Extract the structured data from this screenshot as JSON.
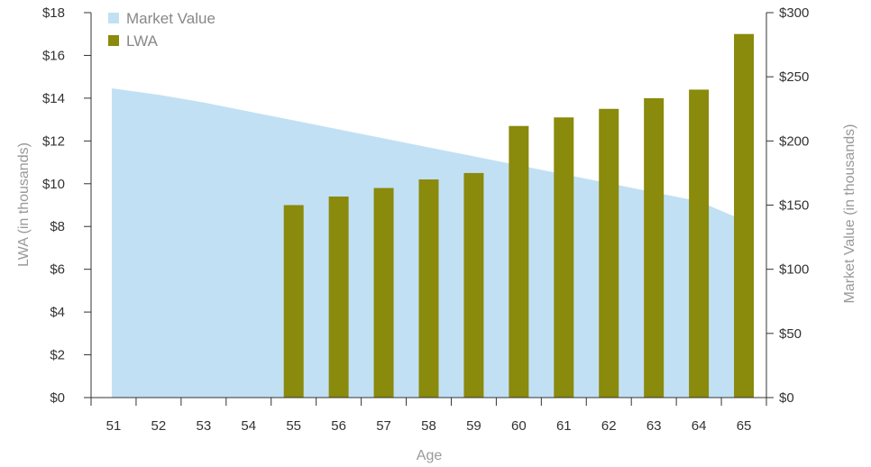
{
  "chart_data": {
    "type": "bar",
    "title": "",
    "categories": [
      "51",
      "52",
      "53",
      "54",
      "55",
      "56",
      "57",
      "58",
      "59",
      "60",
      "61",
      "62",
      "63",
      "64",
      "65"
    ],
    "series": [
      {
        "name": "Market Value",
        "kind": "area",
        "axis": "right",
        "color": "#c2e0f4",
        "values": [
          241,
          236,
          230,
          223,
          216,
          209,
          202,
          195,
          188,
          181,
          174,
          167,
          160,
          153,
          135
        ]
      },
      {
        "name": "LWA",
        "kind": "bar",
        "axis": "left",
        "color": "#8a8a0c",
        "values": [
          0,
          0,
          0,
          0,
          9.0,
          9.4,
          9.8,
          10.2,
          10.5,
          12.7,
          13.1,
          13.5,
          14.0,
          14.4,
          17.0
        ]
      }
    ],
    "xlabel": "Age",
    "ylabel_left": "LWA (in thousands)",
    "ylabel_right": "Market Value (in thousands)",
    "ylim_left": [
      0,
      18
    ],
    "ylim_right": [
      0,
      300
    ],
    "yticks_left": [
      "$0",
      "$2",
      "$4",
      "$6",
      "$8",
      "$10",
      "$12",
      "$14",
      "$16",
      "$18"
    ],
    "yticks_right": [
      "$0",
      "$50",
      "$100",
      "$150",
      "$200",
      "$250",
      "$300"
    ],
    "legend_position": "top-left",
    "grid": false
  }
}
